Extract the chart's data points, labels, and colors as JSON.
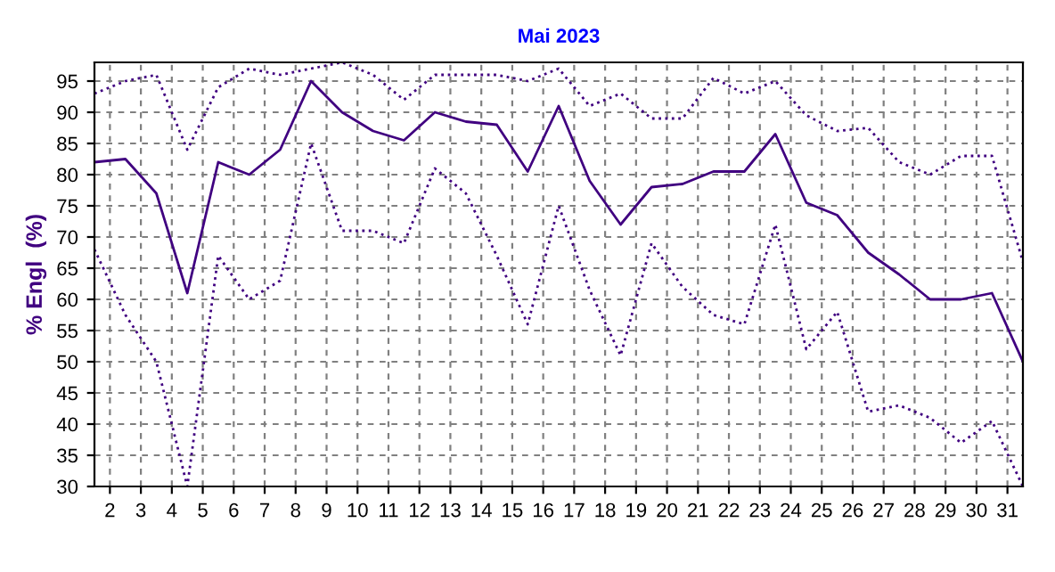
{
  "chart_data": {
    "type": "line",
    "title": "Mai 2023",
    "ylabel": "% Engl  (%)",
    "x": [
      1.5,
      2.5,
      3.5,
      4.5,
      5.5,
      6.5,
      7.5,
      8.5,
      9.5,
      10.5,
      11.5,
      12.5,
      13.5,
      14.5,
      15.5,
      16.5,
      17.5,
      18.5,
      19.5,
      20.5,
      21.5,
      22.5,
      23.5,
      24.5,
      25.5,
      26.5,
      27.5,
      28.5,
      29.5,
      30.5,
      31.5
    ],
    "series": [
      {
        "color": "#400080",
        "line_style": "dotted",
        "values": [
          93,
          95,
          96,
          84,
          94,
          97,
          96,
          97,
          98,
          96,
          92,
          96,
          96,
          96,
          95,
          97,
          91,
          93,
          89,
          89,
          95.5,
          93,
          95,
          89.5,
          87,
          87.5,
          82,
          80,
          83,
          83,
          66
        ]
      },
      {
        "color": "#400080",
        "line_style": "solid",
        "values": [
          82,
          82.5,
          77,
          61,
          82,
          80,
          84,
          95,
          90,
          87,
          85.5,
          90,
          88.5,
          88,
          80.5,
          91,
          79,
          72,
          78,
          78.5,
          80.5,
          80.5,
          86.5,
          75.5,
          73.5,
          67.5,
          64,
          60,
          60,
          61,
          50
        ]
      },
      {
        "color": "#400080",
        "line_style": "dotted",
        "values": [
          68,
          57.5,
          50,
          30,
          67,
          60,
          63,
          85,
          71,
          71,
          69,
          81,
          77,
          67,
          56,
          75,
          61.5,
          51,
          69,
          62,
          57.5,
          56,
          72,
          52,
          58,
          42,
          43,
          41,
          37,
          40.5,
          30
        ]
      }
    ],
    "xlim": [
      1.5,
      31.5
    ],
    "xticks": [
      2,
      3,
      4,
      5,
      6,
      7,
      8,
      9,
      10,
      11,
      12,
      13,
      14,
      15,
      16,
      17,
      18,
      19,
      20,
      21,
      22,
      23,
      24,
      25,
      26,
      27,
      28,
      29,
      30,
      31
    ],
    "ylim": [
      30,
      98
    ],
    "yticks": [
      30,
      35,
      40,
      45,
      50,
      55,
      60,
      65,
      70,
      75,
      80,
      85,
      90,
      95
    ],
    "grid": true,
    "legend": false,
    "marker": "none"
  }
}
